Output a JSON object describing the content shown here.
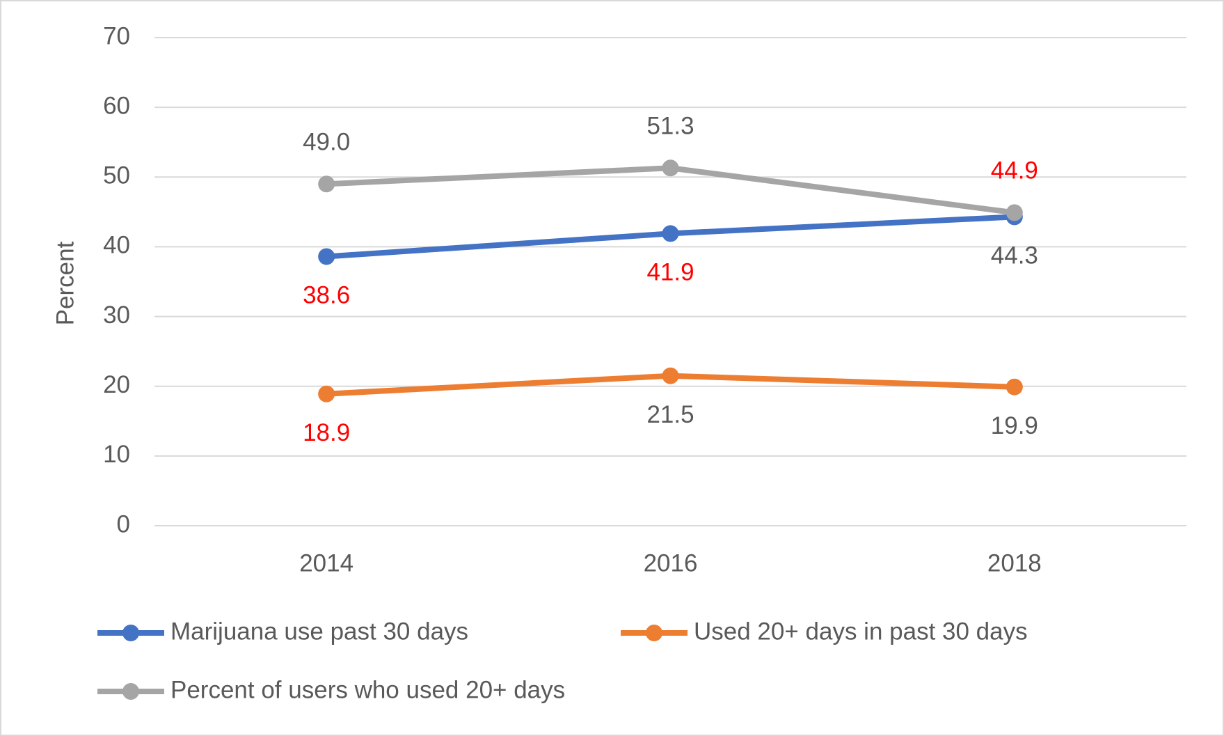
{
  "chart_data": {
    "type": "line",
    "y_label": "Percent",
    "categories": [
      "2014",
      "2016",
      "2018"
    ],
    "ylim": [
      0,
      70
    ],
    "yticks": [
      0,
      10,
      20,
      30,
      40,
      50,
      60,
      70
    ],
    "grid": true,
    "legend": "bottom",
    "series": [
      {
        "name": "Marijuana use past 30 days",
        "color": "#4472c4",
        "values": [
          38.6,
          41.9,
          44.3
        ],
        "value_labels": [
          "38.6",
          "41.9",
          "44.3"
        ],
        "label_colors": [
          "#ff0000",
          "#ff0000",
          "#595959"
        ],
        "label_position": "below"
      },
      {
        "name": "Used 20+ days in past 30 days",
        "color": "#ed7d31",
        "values": [
          18.9,
          21.5,
          19.9
        ],
        "value_labels": [
          "18.9",
          "21.5",
          "19.9"
        ],
        "label_colors": [
          "#ff0000",
          "#595959",
          "#595959"
        ],
        "label_position": "below"
      },
      {
        "name": "Percent of users who used 20+ days",
        "color": "#a5a5a5",
        "values": [
          49.0,
          51.3,
          44.9
        ],
        "value_labels": [
          "49.0",
          "51.3",
          "44.9"
        ],
        "label_colors": [
          "#595959",
          "#595959",
          "#ff0000"
        ],
        "label_position": "above"
      }
    ]
  }
}
